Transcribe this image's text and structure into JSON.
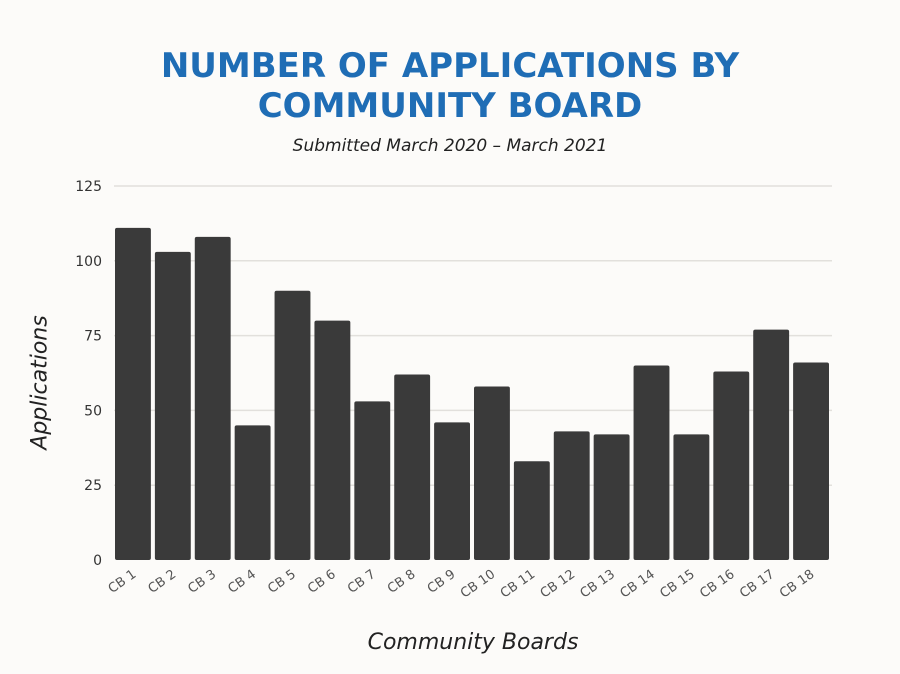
{
  "chart_data": {
    "type": "bar",
    "title": "NUMBER OF APPLICATIONS BY COMMUNITY BOARD",
    "subtitle": "Submitted March 2020 – March 2021",
    "xlabel": "Community Boards",
    "ylabel": "Applications",
    "ylim": [
      0,
      125
    ],
    "yticks": [
      0,
      25,
      50,
      75,
      100,
      125
    ],
    "grid": true,
    "categories": [
      "CB 1",
      "CB 2",
      "CB 3",
      "CB 4",
      "CB 5",
      "CB 6",
      "CB 7",
      "CB 8",
      "CB 9",
      "CB 10",
      "CB 11",
      "CB 12",
      "CB 13",
      "CB 14",
      "CB 15",
      "CB 16",
      "CB 17",
      "CB 18"
    ],
    "values": [
      111,
      103,
      108,
      45,
      90,
      80,
      53,
      62,
      46,
      58,
      33,
      43,
      42,
      65,
      42,
      63,
      77,
      66
    ],
    "colors": {
      "bar": "#3a3a3a",
      "title": "#1f6db5",
      "grid": "#e2e0dc"
    }
  }
}
